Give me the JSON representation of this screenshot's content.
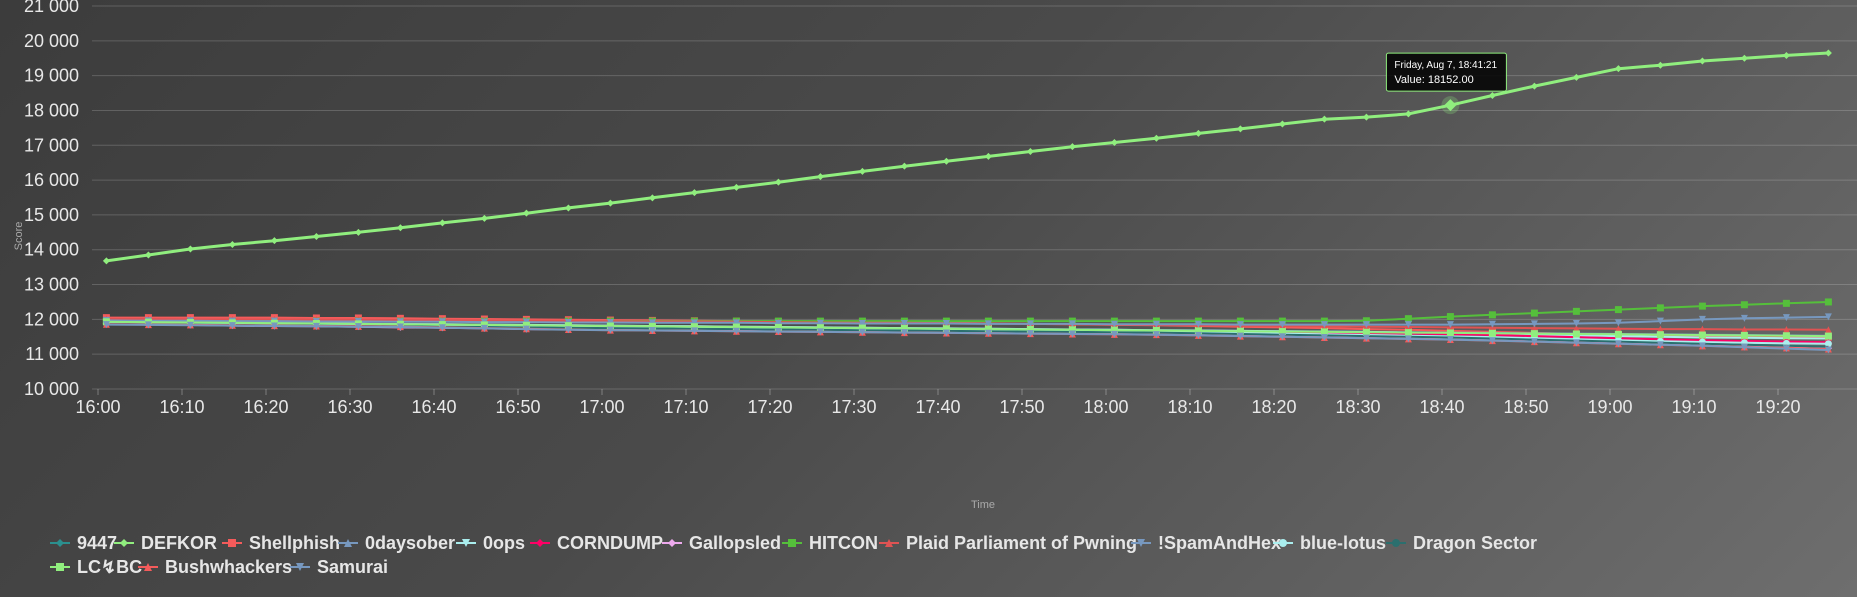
{
  "chart_data": {
    "type": "line",
    "xlabel": "Time",
    "ylabel": "Score",
    "ylim": [
      10000,
      21000
    ],
    "yticks": [
      "10 000",
      "11 000",
      "12 000",
      "13 000",
      "14 000",
      "15 000",
      "16 000",
      "17 000",
      "18 000",
      "19 000",
      "20 000",
      "21 000"
    ],
    "x_tick_labels": [
      "16:00",
      "16:10",
      "16:20",
      "16:30",
      "16:40",
      "16:50",
      "17:00",
      "17:10",
      "17:20",
      "17:30",
      "17:40",
      "17:50",
      "18:00",
      "18:10",
      "18:20",
      "18:30",
      "18:40",
      "18:50",
      "19:00",
      "19:10",
      "19:20"
    ],
    "grid": true,
    "legend_position": "bottom",
    "tooltip": {
      "line1": "Friday, Aug 7, 18:41:21",
      "line2": "Value: 18152.00",
      "time": "18:41",
      "value": 18152
    },
    "x": [
      "16:01",
      "16:06",
      "16:11",
      "16:16",
      "16:21",
      "16:26",
      "16:31",
      "16:36",
      "16:41",
      "16:46",
      "16:51",
      "16:56",
      "17:01",
      "17:06",
      "17:11",
      "17:16",
      "17:21",
      "17:26",
      "17:31",
      "17:36",
      "17:41",
      "17:46",
      "17:51",
      "17:56",
      "18:01",
      "18:06",
      "18:11",
      "18:16",
      "18:21",
      "18:26",
      "18:31",
      "18:36",
      "18:41",
      "18:46",
      "18:51",
      "18:56",
      "19:01",
      "19:06",
      "19:11",
      "19:16",
      "19:21",
      "19:26"
    ],
    "series": [
      {
        "name": "9447",
        "color": "#2b908f",
        "marker": "diamond",
        "values": [
          11910,
          11900,
          11890,
          11880,
          11870,
          11860,
          11850,
          11840,
          11830,
          11820,
          11810,
          11800,
          11790,
          11780,
          11770,
          11760,
          11750,
          11740,
          11730,
          11720,
          11710,
          11700,
          11690,
          11680,
          11670,
          11660,
          11650,
          11640,
          11630,
          11620,
          11610,
          11600,
          11590,
          11580,
          11570,
          11560,
          11550,
          11540,
          11530,
          11520,
          11510,
          11500
        ]
      },
      {
        "name": "DEFKOR",
        "color": "#90ee7e",
        "marker": "diamond",
        "values": [
          13680,
          13850,
          14020,
          14150,
          14260,
          14380,
          14500,
          14630,
          14770,
          14900,
          15050,
          15200,
          15340,
          15490,
          15640,
          15790,
          15940,
          16100,
          16250,
          16400,
          16540,
          16680,
          16820,
          16960,
          17080,
          17200,
          17340,
          17470,
          17610,
          17750,
          17810,
          17900,
          18152,
          18430,
          18700,
          18950,
          19200,
          19300,
          19420,
          19500,
          19580,
          19650
        ]
      },
      {
        "name": "Shellphish",
        "color": "#f45b5b",
        "marker": "square",
        "values": [
          12050,
          12050,
          12050,
          12050,
          12050,
          12040,
          12040,
          12030,
          12020,
          12010,
          12000,
          11990,
          11980,
          11970,
          11960,
          11950,
          11940,
          11930,
          11920,
          11910,
          11900,
          11890,
          11870,
          11860,
          11840,
          11830,
          11810,
          11790,
          11770,
          11750,
          11720,
          11700,
          11670,
          11640,
          11610,
          11580,
          11550,
          11530,
          11520,
          11510,
          11500,
          11490
        ]
      },
      {
        "name": "0daysober",
        "color": "#7798bf",
        "marker": "triangle",
        "values": [
          11940,
          11930,
          11920,
          11910,
          11900,
          11890,
          11880,
          11870,
          11860,
          11850,
          11840,
          11830,
          11820,
          11810,
          11800,
          11790,
          11780,
          11770,
          11760,
          11750,
          11740,
          11730,
          11720,
          11710,
          11700,
          11690,
          11680,
          11670,
          11660,
          11650,
          11640,
          11630,
          11620,
          11610,
          11600,
          11590,
          11580,
          11570,
          11560,
          11550,
          11540,
          11530
        ]
      },
      {
        "name": "0ops",
        "color": "#aaeeee",
        "marker": "triangle-down",
        "values": [
          11920,
          11910,
          11900,
          11890,
          11890,
          11880,
          11870,
          11860,
          11860,
          11850,
          11840,
          11830,
          11820,
          11810,
          11800,
          11790,
          11780,
          11770,
          11760,
          11750,
          11740,
          11730,
          11720,
          11710,
          11700,
          11690,
          11680,
          11670,
          11660,
          11650,
          11640,
          11620,
          11600,
          11580,
          11560,
          11540,
          11520,
          11500,
          11480,
          11470,
          11460,
          11450
        ]
      },
      {
        "name": "CORNDUMP",
        "color": "#ff0066",
        "marker": "diamond",
        "values": [
          11900,
          11890,
          11880,
          11870,
          11860,
          11850,
          11840,
          11830,
          11820,
          11810,
          11800,
          11790,
          11780,
          11770,
          11760,
          11750,
          11740,
          11730,
          11720,
          11710,
          11700,
          11690,
          11680,
          11670,
          11660,
          11650,
          11640,
          11630,
          11620,
          11610,
          11600,
          11590,
          11570,
          11550,
          11520,
          11490,
          11460,
          11430,
          11400,
          11380,
          11360,
          11340
        ]
      },
      {
        "name": "Gallopsled",
        "color": "#eeaaee",
        "marker": "diamond",
        "values": [
          11880,
          11860,
          11840,
          11820,
          11810,
          11800,
          11790,
          11770,
          11760,
          11740,
          11720,
          11710,
          11700,
          11690,
          11680,
          11670,
          11660,
          11650,
          11640,
          11630,
          11620,
          11610,
          11600,
          11590,
          11580,
          11570,
          11560,
          11550,
          11530,
          11510,
          11490,
          11470,
          11450,
          11420,
          11390,
          11360,
          11320,
          11290,
          11260,
          11230,
          11200,
          11170
        ]
      },
      {
        "name": "HITCON",
        "color": "#55bf3b",
        "marker": "square",
        "values": [
          11950,
          11950,
          11950,
          11950,
          11950,
          11950,
          11950,
          11950,
          11950,
          11950,
          11950,
          11950,
          11950,
          11950,
          11950,
          11950,
          11950,
          11950,
          11950,
          11950,
          11950,
          11950,
          11950,
          11950,
          11950,
          11950,
          11950,
          11950,
          11950,
          11950,
          11960,
          12020,
          12080,
          12130,
          12180,
          12230,
          12280,
          12330,
          12380,
          12420,
          12460,
          12500
        ]
      },
      {
        "name": "Plaid Parliament of Pwning",
        "color": "#df5353",
        "marker": "triangle",
        "values": [
          12010,
          12010,
          12000,
          12000,
          12000,
          11990,
          11990,
          11980,
          11980,
          11970,
          11960,
          11960,
          11950,
          11940,
          11940,
          11930,
          11920,
          11910,
          11900,
          11900,
          11890,
          11880,
          11870,
          11860,
          11850,
          11840,
          11830,
          11820,
          11810,
          11800,
          11790,
          11780,
          11770,
          11760,
          11750,
          11740,
          11730,
          11720,
          11720,
          11710,
          11710,
          11700
        ]
      },
      {
        "name": "!SpamAndHex",
        "color": "#7798bf",
        "marker": "triangle-down",
        "values": [
          11970,
          11960,
          11960,
          11950,
          11950,
          11940,
          11940,
          11930,
          11930,
          11920,
          11920,
          11910,
          11910,
          11900,
          11900,
          11900,
          11890,
          11890,
          11880,
          11880,
          11880,
          11870,
          11870,
          11870,
          11860,
          11860,
          11860,
          11850,
          11850,
          11850,
          11850,
          11850,
          11850,
          11860,
          11870,
          11880,
          11900,
          11950,
          12000,
          12030,
          12050,
          12070
        ]
      },
      {
        "name": "blue-lotus",
        "color": "#aaeeee",
        "marker": "circle",
        "values": [
          11890,
          11880,
          11870,
          11860,
          11850,
          11840,
          11830,
          11820,
          11810,
          11800,
          11790,
          11780,
          11770,
          11760,
          11750,
          11740,
          11730,
          11720,
          11710,
          11700,
          11690,
          11680,
          11670,
          11660,
          11650,
          11640,
          11630,
          11610,
          11590,
          11570,
          11550,
          11530,
          11510,
          11490,
          11460,
          11430,
          11400,
          11370,
          11350,
          11330,
          11310,
          11300
        ]
      },
      {
        "name": "Dragon Sector",
        "color": "#2b6f6e",
        "marker": "none",
        "values": [
          11870,
          11860,
          11850,
          11840,
          11830,
          11820,
          11810,
          11800,
          11790,
          11780,
          11770,
          11760,
          11750,
          11740,
          11730,
          11720,
          11710,
          11700,
          11690,
          11680,
          11670,
          11660,
          11650,
          11640,
          11630,
          11620,
          11600,
          11580,
          11560,
          11540,
          11520,
          11500,
          11480,
          11450,
          11420,
          11390,
          11360,
          11330,
          11300,
          11270,
          11240,
          11210
        ]
      },
      {
        "name": "LC↯BC",
        "color": "#90ee7e",
        "marker": "square",
        "values": [
          11930,
          11920,
          11910,
          11900,
          11890,
          11880,
          11870,
          11860,
          11850,
          11840,
          11830,
          11820,
          11810,
          11800,
          11790,
          11780,
          11770,
          11760,
          11750,
          11740,
          11730,
          11720,
          11710,
          11700,
          11690,
          11680,
          11670,
          11660,
          11650,
          11640,
          11630,
          11620,
          11610,
          11600,
          11590,
          11580,
          11570,
          11560,
          11550,
          11540,
          11530,
          11520
        ]
      },
      {
        "name": "Bushwhackers",
        "color": "#f45b5b",
        "marker": "triangle",
        "values": [
          11860,
          11850,
          11840,
          11830,
          11820,
          11810,
          11800,
          11790,
          11770,
          11750,
          11730,
          11710,
          11690,
          11680,
          11670,
          11660,
          11650,
          11640,
          11630,
          11620,
          11610,
          11600,
          11590,
          11580,
          11570,
          11560,
          11540,
          11520,
          11500,
          11480,
          11460,
          11440,
          11420,
          11390,
          11360,
          11330,
          11300,
          11270,
          11240,
          11210,
          11180,
          11150
        ]
      },
      {
        "name": "Samurai",
        "color": "#7798bf",
        "marker": "triangle-down",
        "values": [
          11850,
          11840,
          11830,
          11820,
          11810,
          11800,
          11790,
          11780,
          11760,
          11740,
          11720,
          11700,
          11690,
          11680,
          11670,
          11660,
          11650,
          11640,
          11630,
          11620,
          11610,
          11600,
          11590,
          11580,
          11570,
          11560,
          11540,
          11520,
          11500,
          11480,
          11460,
          11440,
          11420,
          11390,
          11360,
          11330,
          11300,
          11270,
          11240,
          11200,
          11160,
          11120
        ]
      }
    ]
  }
}
